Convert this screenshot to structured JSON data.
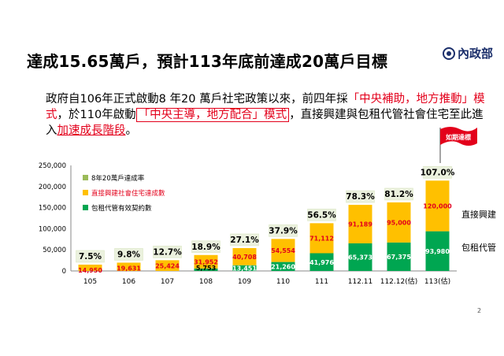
{
  "header": {
    "title": "達成15.65萬戶，預計113年底前達成20萬戶目標",
    "logo_text": "內政部"
  },
  "intro": {
    "part1": "政府自106年正式啟動8 年20 萬戶社宅政策以來，前四年採",
    "part2": "「中央補助，地方推動」模式",
    "part3": "，於110年啟動",
    "part4": "「中央主導，地方配合」模式",
    "part5": "，直接興建與包租代管社會住宅至此進入",
    "part6": "加速成長階段",
    "part7": "。"
  },
  "page_number": "2",
  "flag_label": "如期達標",
  "side_labels": {
    "direct": "直接興建",
    "lease": "包租代管"
  },
  "colors": {
    "lease": "#00a651",
    "direct": "#ffc000",
    "rate": "#ffc000",
    "rate_legend": "#9bbb59",
    "rate_box": "#ebf1de",
    "label_red": "#e3001b",
    "flag": "#e3001b"
  },
  "chart_data": {
    "type": "bar",
    "stacked": true,
    "categories": [
      "105",
      "106",
      "107",
      "108",
      "109",
      "110",
      "111",
      "112.11",
      "112.12(估)",
      "113(估)"
    ],
    "series": [
      {
        "name": "包租代管有效契約數",
        "values": [
          0,
          0,
          0,
          5753,
          13451,
          21260,
          41976,
          65373,
          67375,
          93980
        ],
        "labels": [
          "",
          "",
          "",
          "5,753",
          "13,451",
          "21,260",
          "41,976",
          "65,373",
          "67,375",
          "93,980"
        ]
      },
      {
        "name": "直接興建社會住宅達成數",
        "values": [
          14950,
          19631,
          25424,
          31952,
          40708,
          54554,
          71112,
          91189,
          95000,
          120000
        ],
        "labels": [
          "14,950",
          "19,631",
          "25,424",
          "31,952",
          "40,708",
          "54,554",
          "71,112",
          "91,189",
          "95,000",
          "120,000"
        ]
      }
    ],
    "rates": {
      "name": "8年20萬戶達成率",
      "labels": [
        "7.5%",
        "9.8%",
        "12.7%",
        "18.9%",
        "27.1%",
        "37.9%",
        "56.5%",
        "78.3%",
        "81.2%",
        "107.0%"
      ]
    },
    "ylim": [
      0,
      250000
    ],
    "yticks": [
      "0",
      "50,000",
      "100,000",
      "150,000",
      "200,000",
      "250,000"
    ],
    "grid": false,
    "legend_position": "top-left"
  }
}
